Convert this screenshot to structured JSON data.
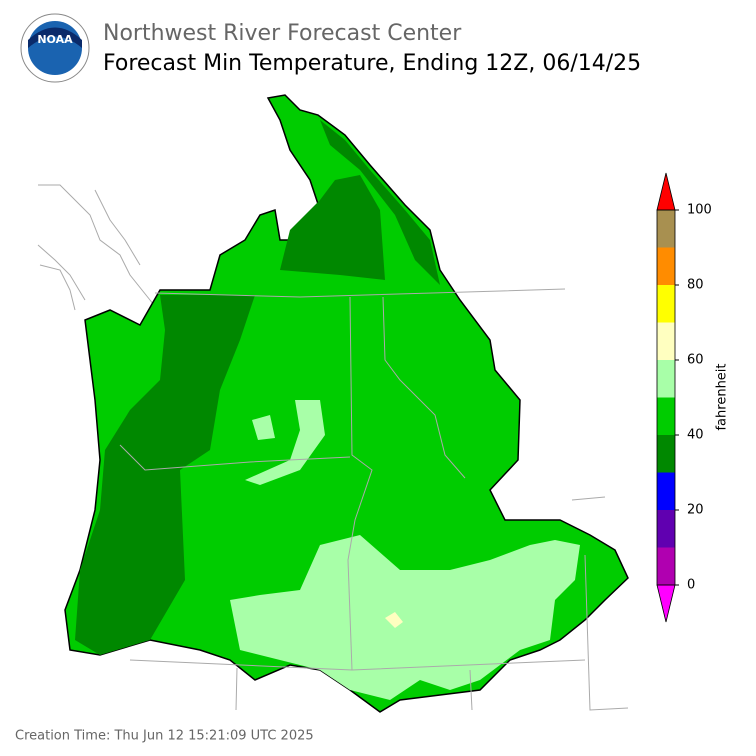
{
  "header": {
    "organization": "Northwest River Forecast Center",
    "title": "Forecast Min Temperature, Ending 12Z, 06/14/25"
  },
  "logo": {
    "text": "NOAA"
  },
  "colorbar": {
    "label": "fahrenheit",
    "range": [
      0,
      100
    ],
    "ticks": [
      0,
      20,
      40,
      60,
      80,
      100
    ],
    "bounds": [
      0,
      10,
      20,
      30,
      40,
      50,
      60,
      70,
      80,
      90,
      100
    ],
    "colors": [
      "#b000b0",
      "#6000b0",
      "#0000ff",
      "#008800",
      "#00cc00",
      "#a8ffa8",
      "#ffffc0",
      "#ffff00",
      "#ff8c00",
      "#a89050"
    ],
    "under_color": "#ff00ff",
    "over_color": "#ff0000"
  },
  "footer": {
    "creation_time": "Creation Time: Thu Jun 12 15:21:09 UTC 2025"
  }
}
